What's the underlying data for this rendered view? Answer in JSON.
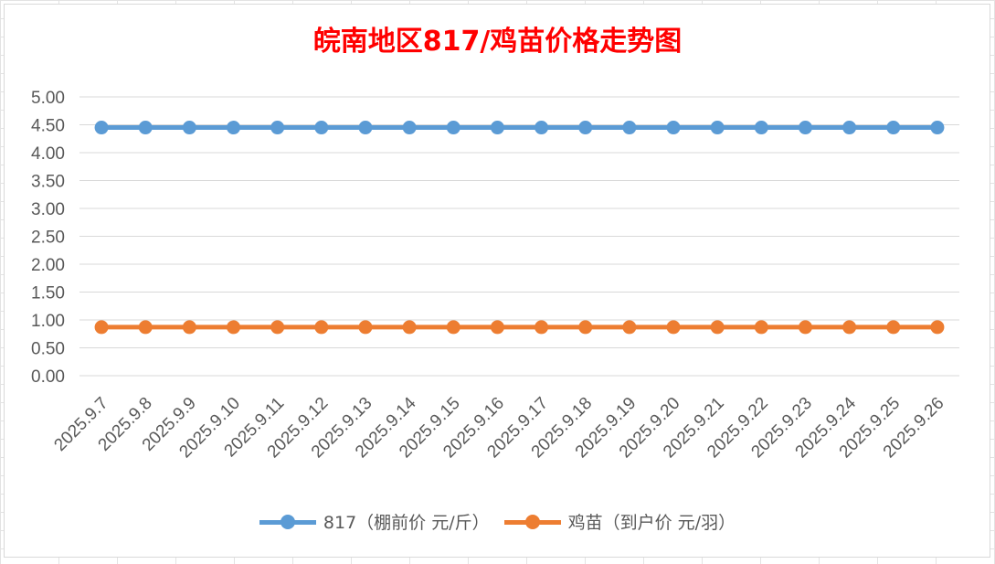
{
  "chart_data": {
    "type": "line",
    "title": "皖南地区817/鸡苗价格走势图",
    "xlabel": "",
    "ylabel": "",
    "ylim": [
      0,
      5
    ],
    "yticks": [
      "0.00",
      "0.50",
      "1.00",
      "1.50",
      "2.00",
      "2.50",
      "3.00",
      "3.50",
      "4.00",
      "4.50",
      "5.00"
    ],
    "categories": [
      "2025.9.7",
      "2025.9.8",
      "2025.9.9",
      "2025.9.10",
      "2025.9.11",
      "2025.9.12",
      "2025.9.13",
      "2025.9.14",
      "2025.9.15",
      "2025.9.16",
      "2025.9.17",
      "2025.9.18",
      "2025.9.19",
      "2025.9.20",
      "2025.9.21",
      "2025.9.22",
      "2025.9.23",
      "2025.9.24",
      "2025.9.25",
      "2025.9.26"
    ],
    "series": [
      {
        "name": "817（棚前价 元/斤）",
        "color": "#5b9bd5",
        "values": [
          4.45,
          4.45,
          4.45,
          4.45,
          4.45,
          4.45,
          4.45,
          4.45,
          4.45,
          4.45,
          4.45,
          4.45,
          4.45,
          4.45,
          4.45,
          4.45,
          4.45,
          4.45,
          4.45,
          4.45
        ]
      },
      {
        "name": "鸡苗（到户价 元/羽）",
        "color": "#ed7d31",
        "values": [
          0.87,
          0.87,
          0.87,
          0.87,
          0.87,
          0.87,
          0.87,
          0.87,
          0.87,
          0.87,
          0.87,
          0.87,
          0.87,
          0.87,
          0.87,
          0.87,
          0.87,
          0.87,
          0.87,
          0.87
        ]
      }
    ],
    "grid": true,
    "legend_position": "bottom"
  }
}
